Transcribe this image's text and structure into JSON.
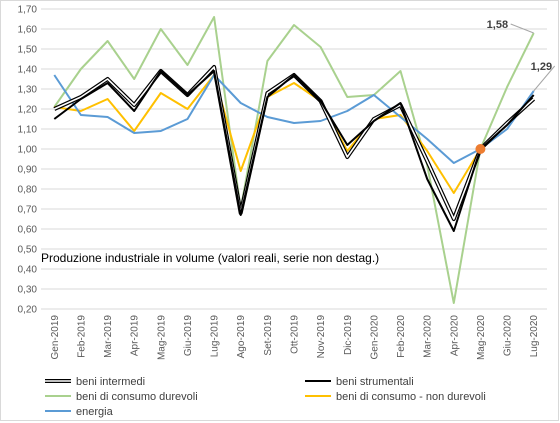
{
  "chart_data": {
    "type": "line",
    "title": "Produzione  industriale in volume (valori reali, serie non destag.)",
    "xlabel": "",
    "ylabel": "",
    "ylim": [
      0.2,
      1.7
    ],
    "yticks": [
      "0,20",
      "0,30",
      "0,40",
      "0,50",
      "0,60",
      "0,70",
      "0,80",
      "0,90",
      "1,00",
      "1,10",
      "1,20",
      "1,30",
      "1,40",
      "1,50",
      "1,60",
      "1,70"
    ],
    "grid": true,
    "legend": "bottom",
    "categories": [
      "Gen-2019",
      "Feb-2019",
      "Mar-2019",
      "Apr-2019",
      "Mag-2019",
      "Giu-2019",
      "Lug-2019",
      "Ago-2019",
      "Set-2019",
      "Ott-2019",
      "Nov-2019",
      "Dic-2019",
      "Gen-2020",
      "Feb-2020",
      "Mar-2020",
      "Apr-2020",
      "Mag-2020",
      "Giu-2020",
      "Lug-2020"
    ],
    "series": [
      {
        "name": "beni intermedi",
        "color": "#000000",
        "style": "outline",
        "values": [
          1.2,
          1.26,
          1.35,
          1.22,
          1.39,
          1.27,
          1.41,
          0.68,
          1.28,
          1.37,
          1.24,
          0.96,
          1.15,
          1.22,
          0.94,
          0.65,
          1.0,
          1.13,
          1.25
        ]
      },
      {
        "name": "beni strumentali",
        "color": "#000000",
        "style": "solid",
        "values": [
          1.15,
          1.25,
          1.33,
          1.19,
          1.39,
          1.27,
          1.39,
          0.67,
          1.26,
          1.37,
          1.24,
          1.02,
          1.14,
          1.23,
          0.85,
          0.59,
          1.0,
          1.12,
          1.27
        ]
      },
      {
        "name": "beni di consumo durevoli",
        "color": "#a9d18e",
        "style": "solid",
        "values": [
          1.21,
          1.4,
          1.54,
          1.35,
          1.6,
          1.42,
          1.66,
          0.7,
          1.44,
          1.62,
          1.51,
          1.26,
          1.27,
          1.39,
          0.92,
          0.23,
          1.0,
          1.31,
          1.58
        ]
      },
      {
        "name": "beni di consumo - non durevoli",
        "color": "#ffc000",
        "style": "solid",
        "values": [
          1.21,
          1.19,
          1.25,
          1.09,
          1.28,
          1.2,
          1.37,
          0.89,
          1.26,
          1.33,
          1.24,
          0.99,
          1.15,
          1.17,
          0.99,
          0.78,
          1.0,
          1.13,
          1.25
        ]
      },
      {
        "name": "energia",
        "color": "#5b9bd5",
        "style": "solid",
        "values": [
          1.37,
          1.17,
          1.16,
          1.08,
          1.09,
          1.15,
          1.37,
          1.23,
          1.16,
          1.13,
          1.14,
          1.19,
          1.27,
          1.16,
          1.05,
          0.93,
          1.0,
          1.1,
          1.29
        ]
      }
    ],
    "annotations": [
      {
        "text": "1,58",
        "series": "beni di consumo durevoli",
        "category": "Lug-2020"
      },
      {
        "text": "1,29",
        "series": "energia",
        "category": "Lug-2020"
      }
    ],
    "marker": {
      "category": "Mag-2020",
      "value": 1.0,
      "color": "#ed7d31"
    }
  }
}
